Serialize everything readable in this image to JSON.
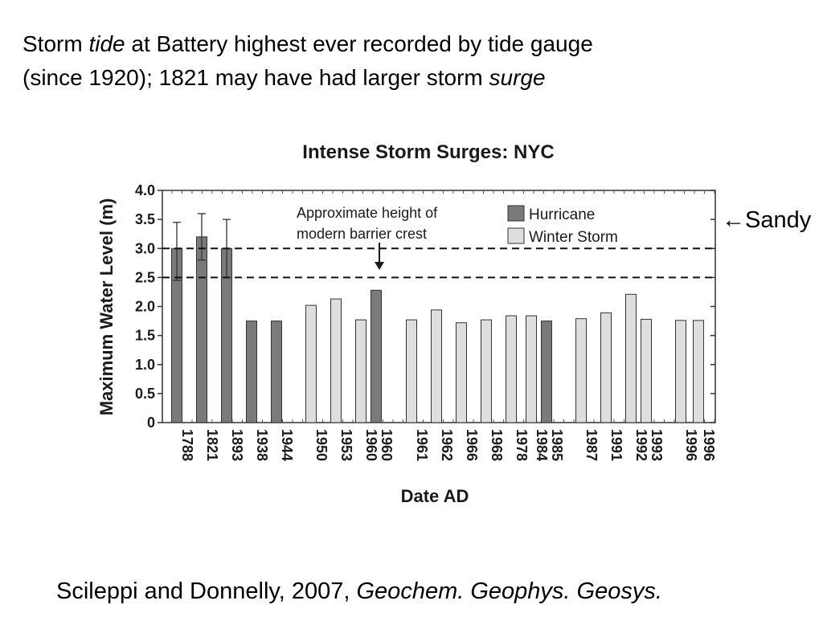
{
  "header": {
    "line1": {
      "pre": "Storm ",
      "em": "tide",
      "post": " at Battery highest ever recorded by tide gauge"
    },
    "line2": {
      "pre": "(since 1920);  1821 may have had larger storm ",
      "em": "surge"
    }
  },
  "sandy_label": "Sandy",
  "sandy_arrow": "←",
  "citation": {
    "pre": "Scileppi and Donnelly, 2007, ",
    "em": "Geochem. Geophys. Geosys."
  },
  "colors": {
    "hurricane": "#7a7a7a",
    "winter": "#dedede",
    "edge": "#333333"
  },
  "chart_data": {
    "type": "bar",
    "title": "Intense Storm Surges: NYC",
    "xlabel": "Date AD",
    "ylabel": "Maximum Water Level (m)",
    "ylim": [
      0,
      4.0
    ],
    "yticks": [
      "0",
      "0.5",
      "1.0",
      "1.5",
      "2.0",
      "2.5",
      "3.0",
      "3.5",
      "4.0"
    ],
    "legend": [
      "Hurricane",
      "Winter Storm"
    ],
    "annotation": {
      "line1": "Approximate height of",
      "line2": "modern barrier crest"
    },
    "reference_lines": [
      2.5,
      3.0
    ],
    "bars": [
      {
        "label": "1788",
        "value": 3.0,
        "type": "Hurricane",
        "err": [
          2.45,
          3.45
        ]
      },
      {
        "label": "1821",
        "value": 3.2,
        "type": "Hurricane",
        "err": [
          2.8,
          3.6
        ]
      },
      {
        "label": "1893",
        "value": 3.0,
        "type": "Hurricane",
        "err": [
          2.5,
          3.5
        ]
      },
      {
        "label": "1938",
        "value": 1.75,
        "type": "Hurricane"
      },
      {
        "label": "1944",
        "value": 1.75,
        "type": "Hurricane"
      },
      {
        "label": "1950",
        "value": 2.02,
        "type": "Winter Storm"
      },
      {
        "label": "1953",
        "value": 2.13,
        "type": "Winter Storm"
      },
      {
        "label": "1960",
        "value": 1.77,
        "type": "Winter Storm"
      },
      {
        "label": "1960",
        "value": 2.28,
        "type": "Hurricane"
      },
      {
        "label": "1961",
        "value": 1.77,
        "type": "Winter Storm"
      },
      {
        "label": "1962",
        "value": 1.94,
        "type": "Winter Storm"
      },
      {
        "label": "1966",
        "value": 1.72,
        "type": "Winter Storm"
      },
      {
        "label": "1968",
        "value": 1.77,
        "type": "Winter Storm"
      },
      {
        "label": "1978",
        "value": 1.84,
        "type": "Winter Storm"
      },
      {
        "label": "1984",
        "value": 1.84,
        "type": "Winter Storm"
      },
      {
        "label": "1985",
        "value": 1.75,
        "type": "Hurricane"
      },
      {
        "label": "1987",
        "value": 1.79,
        "type": "Winter Storm"
      },
      {
        "label": "1991",
        "value": 1.89,
        "type": "Winter Storm"
      },
      {
        "label": "1992",
        "value": 2.21,
        "type": "Winter Storm"
      },
      {
        "label": "1993",
        "value": 1.78,
        "type": "Winter Storm"
      },
      {
        "label": "1996",
        "value": 1.76,
        "type": "Winter Storm"
      },
      {
        "label": "1996",
        "value": 1.76,
        "type": "Winter Storm"
      }
    ]
  }
}
